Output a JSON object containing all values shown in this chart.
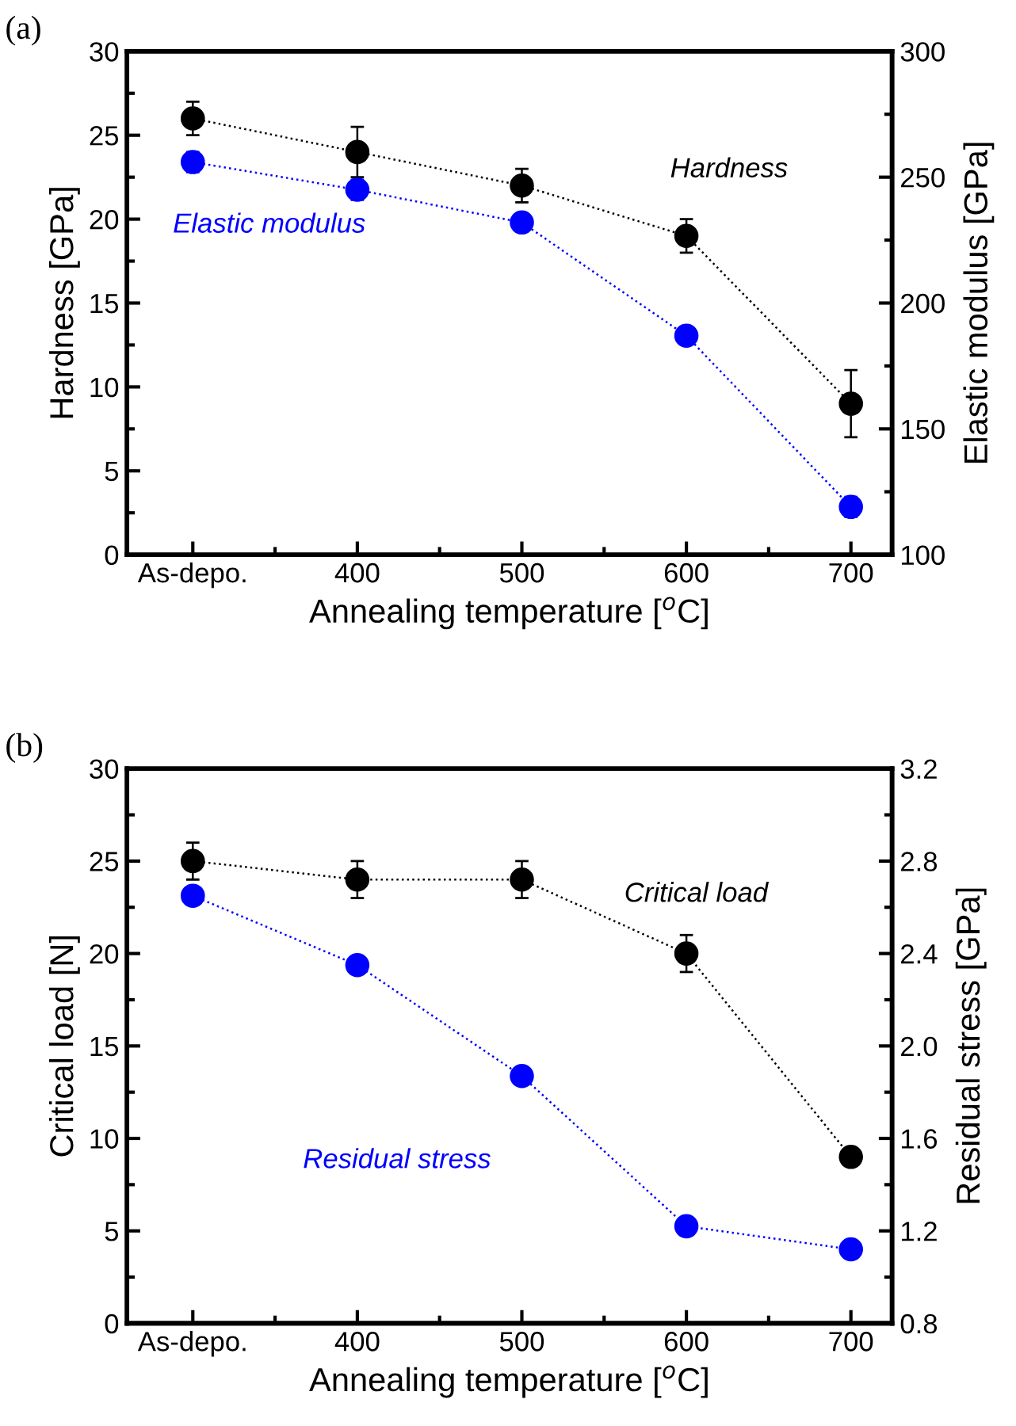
{
  "chart_data": [
    {
      "type": "line",
      "title": "(a)",
      "xlabel": "Annealing temperature [$^{o}$C]",
      "ylabel": "Hardness [GPa]",
      "y2label": "Elastic modulus [GPa]",
      "categories": [
        "As-depo.",
        "400",
        "500",
        "600",
        "700"
      ],
      "ylim": [
        0,
        30
      ],
      "yticks": [
        0,
        5,
        10,
        15,
        20,
        25,
        30
      ],
      "y2lim": [
        100,
        300
      ],
      "y2ticks": [
        100,
        150,
        200,
        250,
        300
      ],
      "marker": "circle",
      "line_style": "dotted",
      "legend": false,
      "grid": false,
      "series": [
        {
          "name": "Hardness",
          "color": "#000000",
          "values": [
            26,
            24,
            22,
            19,
            9
          ],
          "errors": [
            1,
            1.5,
            1,
            1,
            2
          ]
        },
        {
          "name": "Elastic modulus",
          "color": "#0000ff",
          "axis": "y2",
          "values": [
            256,
            245,
            232,
            187,
            119
          ],
          "errors": [
            4,
            4,
            3,
            3,
            4
          ]
        }
      ]
    },
    {
      "type": "line",
      "title": "(b)",
      "xlabel": "Annealing temperature [$^{o}$C]",
      "ylabel": "Critical load [N]",
      "y2label": "Residual stress [GPa]",
      "categories": [
        "As-depo.",
        "400",
        "500",
        "600",
        "700"
      ],
      "ylim": [
        0,
        30
      ],
      "yticks": [
        0,
        5,
        10,
        15,
        20,
        25,
        30
      ],
      "y2lim": [
        0.8,
        3.2
      ],
      "y2ticks": [
        {
          "value": 0.8,
          "label": "0.8"
        },
        {
          "value": 1.2,
          "label": "1.2"
        },
        {
          "value": 1.6,
          "label": "1.6"
        },
        {
          "value": 2.0,
          "label": "2.0"
        },
        {
          "value": 2.4,
          "label": "2.4"
        },
        {
          "value": 2.8,
          "label": "2.8"
        },
        {
          "value": 3.2,
          "label": "3.2"
        }
      ],
      "marker": "circle",
      "line_style": "dotted",
      "legend": false,
      "grid": false,
      "series": [
        {
          "name": "Critical load",
          "color": "#000000",
          "values": [
            25,
            24,
            24,
            20,
            9
          ],
          "errors": [
            1,
            1,
            1,
            1,
            null
          ]
        },
        {
          "name": "Residual stress",
          "color": "#0000ff",
          "axis": "y2",
          "values": [
            2.65,
            2.35,
            1.87,
            1.22,
            1.12
          ]
        }
      ]
    }
  ]
}
